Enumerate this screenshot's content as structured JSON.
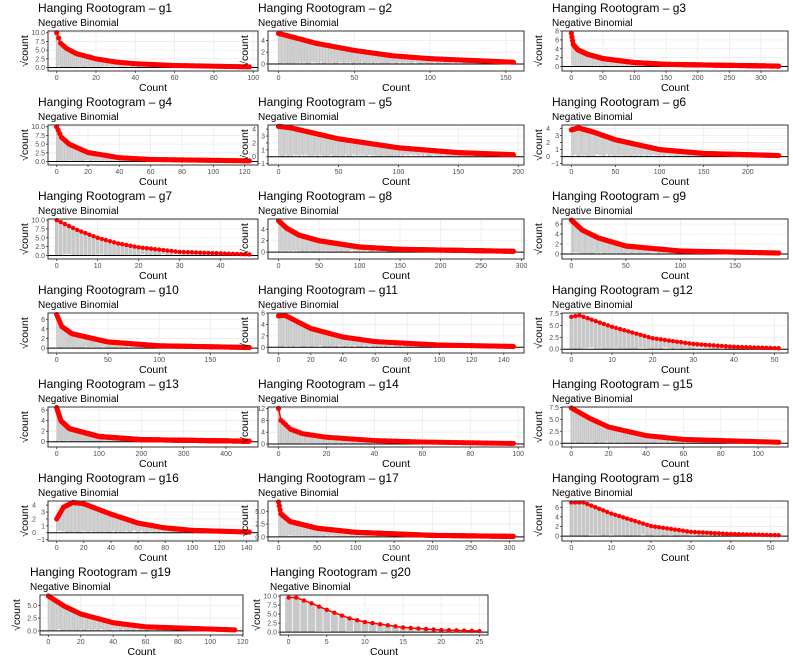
{
  "colors": {
    "fitted": "#ff0000",
    "observed_bar": "#c8c8c8",
    "grid": "#ebebeb",
    "zero_line": "#000000",
    "panel_border": "#333333"
  },
  "chart_data": [
    {
      "type": "bar",
      "title": "Hanging Rootogram – g1",
      "subtitle": "Negative Binomial",
      "xlabel": "Count",
      "ylabel": "√count",
      "xlim": [
        0,
        98
      ],
      "ylim": [
        -1,
        10.5
      ],
      "xticks": [
        0,
        20,
        40,
        60,
        80,
        100
      ],
      "yticks": [
        0,
        2.5,
        5,
        7.5,
        10
      ],
      "ytick_labels": [
        "0.0",
        "2.5",
        "5.0",
        "7.5",
        "10.0"
      ],
      "fitted_sqrt": [
        [
          0,
          10
        ],
        [
          2,
          7
        ],
        [
          5,
          5.5
        ],
        [
          10,
          4
        ],
        [
          20,
          2.5
        ],
        [
          30,
          1.6
        ],
        [
          40,
          1.1
        ],
        [
          60,
          0.6
        ],
        [
          98,
          0.2
        ]
      ]
    },
    {
      "type": "bar",
      "title": "Hanging Rootogram – g2",
      "subtitle": "Negative Binomial",
      "xlabel": "Count",
      "ylabel": "√count",
      "xlim": [
        0,
        155
      ],
      "ylim": [
        -1.2,
        5.6
      ],
      "xticks": [
        0,
        50,
        100,
        150
      ],
      "yticks": [
        0,
        2,
        4
      ],
      "ytick_labels": [
        "0",
        "2",
        "4"
      ],
      "fitted_sqrt": [
        [
          0,
          5.2
        ],
        [
          25,
          3.5
        ],
        [
          50,
          2.3
        ],
        [
          75,
          1.4
        ],
        [
          100,
          0.9
        ],
        [
          155,
          0.3
        ]
      ]
    },
    {
      "type": "bar",
      "title": "Hanging Rootogram – g3",
      "subtitle": "Negative Binomial",
      "xlabel": "Count",
      "ylabel": "√count",
      "xlim": [
        0,
        328
      ],
      "ylim": [
        -1,
        8
      ],
      "xticks": [
        0,
        50,
        100,
        150,
        200,
        250,
        300
      ],
      "yticks": [
        0,
        2,
        4,
        6,
        8
      ],
      "ytick_labels": [
        "0",
        "2",
        "4",
        "6",
        "8"
      ],
      "fitted_sqrt": [
        [
          0,
          7.5
        ],
        [
          3,
          5
        ],
        [
          10,
          3.8
        ],
        [
          25,
          2.8
        ],
        [
          50,
          1.8
        ],
        [
          100,
          0.9
        ],
        [
          150,
          0.5
        ],
        [
          328,
          0.1
        ]
      ]
    },
    {
      "type": "bar",
      "title": "Hanging Rootogram – g4",
      "subtitle": "Negative Binomial",
      "xlabel": "Count",
      "ylabel": "√count",
      "xlim": [
        0,
        123
      ],
      "ylim": [
        -1,
        10.5
      ],
      "xticks": [
        0,
        20,
        40,
        60,
        80,
        100,
        120
      ],
      "yticks": [
        0,
        2.5,
        5,
        7.5,
        10
      ],
      "ytick_labels": [
        "0.0",
        "2.5",
        "5.0",
        "7.5",
        "10.0"
      ],
      "fitted_sqrt": [
        [
          0,
          10
        ],
        [
          3,
          7
        ],
        [
          8,
          5
        ],
        [
          20,
          2.6
        ],
        [
          40,
          1.1
        ],
        [
          60,
          0.6
        ],
        [
          123,
          0.2
        ]
      ]
    },
    {
      "type": "bar",
      "title": "Hanging Rootogram – g5",
      "subtitle": "Negative Binomial",
      "xlabel": "Count",
      "ylabel": "√count",
      "xlim": [
        0,
        196
      ],
      "ylim": [
        -1.2,
        4.6
      ],
      "xticks": [
        0,
        50,
        100,
        150,
        200
      ],
      "yticks": [
        -1,
        0,
        1,
        2,
        3,
        4
      ],
      "ytick_labels": [
        "−1",
        "0",
        "1",
        "2",
        "3",
        "4"
      ],
      "fitted_sqrt": [
        [
          0,
          4.4
        ],
        [
          10,
          4.2
        ],
        [
          50,
          2.6
        ],
        [
          100,
          1.3
        ],
        [
          150,
          0.6
        ],
        [
          196,
          0.3
        ]
      ]
    },
    {
      "type": "bar",
      "title": "Hanging Rootogram – g6",
      "subtitle": "Negative Binomial",
      "xlabel": "Count",
      "ylabel": "√count",
      "xlim": [
        0,
        235
      ],
      "ylim": [
        -1.2,
        4.5
      ],
      "xticks": [
        0,
        50,
        100,
        150,
        200
      ],
      "yticks": [
        -1,
        0,
        1,
        2,
        3,
        4
      ],
      "ytick_labels": [
        "−1",
        "0",
        "1",
        "2",
        "3",
        "4"
      ],
      "fitted_sqrt": [
        [
          0,
          3.8
        ],
        [
          8,
          4.1
        ],
        [
          25,
          3.5
        ],
        [
          50,
          2.4
        ],
        [
          100,
          1
        ],
        [
          150,
          0.45
        ],
        [
          235,
          0.15
        ]
      ]
    },
    {
      "type": "bar",
      "title": "Hanging Rootogram – g7",
      "subtitle": "Negative Binomial",
      "xlabel": "Count",
      "ylabel": "√count",
      "xlim": [
        0,
        47
      ],
      "ylim": [
        -1,
        10.3
      ],
      "xticks": [
        0,
        10,
        20,
        30,
        40
      ],
      "yticks": [
        0,
        2.5,
        5,
        7.5,
        10
      ],
      "ytick_labels": [
        "0.0",
        "2.5",
        "5.0",
        "7.5",
        "10.0"
      ],
      "fitted_sqrt": [
        [
          0,
          10
        ],
        [
          5,
          7.2
        ],
        [
          10,
          5
        ],
        [
          15,
          3.4
        ],
        [
          20,
          2.3
        ],
        [
          30,
          1
        ],
        [
          47,
          0.3
        ]
      ]
    },
    {
      "type": "bar",
      "title": "Hanging Rootogram – g8",
      "subtitle": "Negative Binomial",
      "xlabel": "Count",
      "ylabel": "√count",
      "xlim": [
        0,
        290
      ],
      "ylim": [
        -1.2,
        5.8
      ],
      "xticks": [
        0,
        50,
        100,
        150,
        200,
        250,
        300
      ],
      "yticks": [
        0,
        2,
        4
      ],
      "ytick_labels": [
        "0",
        "2",
        "4"
      ],
      "fitted_sqrt": [
        [
          0,
          5.5
        ],
        [
          10,
          4.2
        ],
        [
          25,
          3
        ],
        [
          50,
          2
        ],
        [
          100,
          0.9
        ],
        [
          150,
          0.5
        ],
        [
          290,
          0.15
        ]
      ]
    },
    {
      "type": "bar",
      "title": "Hanging Rootogram – g9",
      "subtitle": "Negative Binomial",
      "xlabel": "Count",
      "ylabel": "√count",
      "xlim": [
        0,
        190
      ],
      "ylim": [
        -1,
        7
      ],
      "xticks": [
        0,
        50,
        100,
        150
      ],
      "yticks": [
        0,
        2,
        4,
        6
      ],
      "ytick_labels": [
        "0",
        "2",
        "4",
        "6"
      ],
      "fitted_sqrt": [
        [
          0,
          6.8
        ],
        [
          10,
          4.8
        ],
        [
          25,
          3.2
        ],
        [
          50,
          1.6
        ],
        [
          100,
          0.6
        ],
        [
          190,
          0.2
        ]
      ]
    },
    {
      "type": "bar",
      "title": "Hanging Rootogram – g10",
      "subtitle": "Negative Binomial",
      "xlabel": "Count",
      "ylabel": "√count",
      "xlim": [
        0,
        188
      ],
      "ylim": [
        -1,
        7.3
      ],
      "xticks": [
        0,
        50,
        100,
        150
      ],
      "yticks": [
        0,
        2,
        4,
        6
      ],
      "ytick_labels": [
        "0",
        "2",
        "4",
        "6"
      ],
      "fitted_sqrt": [
        [
          0,
          7
        ],
        [
          5,
          4.5
        ],
        [
          15,
          3
        ],
        [
          50,
          1.3
        ],
        [
          100,
          0.5
        ],
        [
          188,
          0.15
        ]
      ]
    },
    {
      "type": "bar",
      "title": "Hanging Rootogram – g11",
      "subtitle": "Negative Binomial",
      "xlabel": "Count",
      "ylabel": "√count",
      "xlim": [
        0,
        146
      ],
      "ylim": [
        -1,
        6
      ],
      "xticks": [
        0,
        20,
        40,
        60,
        80,
        100,
        120,
        140
      ],
      "yticks": [
        0,
        2,
        4,
        6
      ],
      "ytick_labels": [
        "0",
        "2",
        "4",
        "6"
      ],
      "fitted_sqrt": [
        [
          0,
          5.5
        ],
        [
          4,
          5.6
        ],
        [
          20,
          3.3
        ],
        [
          40,
          1.8
        ],
        [
          60,
          1
        ],
        [
          100,
          0.4
        ],
        [
          146,
          0.15
        ]
      ]
    },
    {
      "type": "bar",
      "title": "Hanging Rootogram – g12",
      "subtitle": "Negative Binomial",
      "xlabel": "Count",
      "ylabel": "√count",
      "xlim": [
        0,
        51
      ],
      "ylim": [
        -0.8,
        7.6
      ],
      "xticks": [
        0,
        10,
        20,
        30,
        40,
        50
      ],
      "yticks": [
        0,
        2.5,
        5,
        7.5
      ],
      "ytick_labels": [
        "0.0",
        "2.5",
        "5.0",
        "7.5"
      ],
      "fitted_sqrt": [
        [
          0,
          6.8
        ],
        [
          2,
          7.1
        ],
        [
          5,
          6.2
        ],
        [
          10,
          4.7
        ],
        [
          20,
          2.3
        ],
        [
          30,
          1.1
        ],
        [
          40,
          0.5
        ],
        [
          51,
          0.2
        ]
      ]
    },
    {
      "type": "bar",
      "title": "Hanging Rootogram – g13",
      "subtitle": "Negative Binomial",
      "xlabel": "Count",
      "ylabel": "√count",
      "xlim": [
        0,
        455
      ],
      "ylim": [
        -1,
        6.6
      ],
      "xticks": [
        0,
        100,
        200,
        300,
        400
      ],
      "yticks": [
        0,
        2,
        4,
        6
      ],
      "ytick_labels": [
        "0",
        "2",
        "4",
        "6"
      ],
      "fitted_sqrt": [
        [
          0,
          6.5
        ],
        [
          10,
          4
        ],
        [
          30,
          2.5
        ],
        [
          100,
          1
        ],
        [
          200,
          0.4
        ],
        [
          455,
          0.1
        ]
      ]
    },
    {
      "type": "bar",
      "title": "Hanging Rootogram – g14",
      "subtitle": "Negative Binomial",
      "xlabel": "Count",
      "ylabel": "√count",
      "xlim": [
        0,
        98
      ],
      "ylim": [
        -1,
        12.5
      ],
      "xticks": [
        0,
        20,
        40,
        60,
        80,
        100
      ],
      "yticks": [
        0,
        4,
        8,
        12
      ],
      "ytick_labels": [
        "0",
        "4",
        "8",
        "12"
      ],
      "fitted_sqrt": [
        [
          0,
          12
        ],
        [
          1,
          8
        ],
        [
          5,
          5
        ],
        [
          10,
          3.5
        ],
        [
          20,
          2.3
        ],
        [
          40,
          1.2
        ],
        [
          60,
          0.7
        ],
        [
          98,
          0.2
        ]
      ]
    },
    {
      "type": "bar",
      "title": "Hanging Rootogram – g15",
      "subtitle": "Negative Binomial",
      "xlabel": "Count",
      "ylabel": "√count",
      "xlim": [
        0,
        111
      ],
      "ylim": [
        -0.8,
        7.6
      ],
      "xticks": [
        0,
        20,
        40,
        60,
        80,
        100
      ],
      "yticks": [
        0,
        2.5,
        5,
        7.5
      ],
      "ytick_labels": [
        "0.0",
        "2.5",
        "5.0",
        "7.5"
      ],
      "fitted_sqrt": [
        [
          0,
          7.4
        ],
        [
          10,
          5.2
        ],
        [
          20,
          3.4
        ],
        [
          40,
          1.6
        ],
        [
          60,
          0.8
        ],
        [
          111,
          0.2
        ]
      ]
    },
    {
      "type": "bar",
      "title": "Hanging Rootogram – g16",
      "subtitle": "Negative Binomial",
      "xlabel": "Count",
      "ylabel": "√count",
      "xlim": [
        0,
        142
      ],
      "ylim": [
        -1.2,
        4.6
      ],
      "xticks": [
        0,
        20,
        40,
        60,
        80,
        100,
        120,
        140
      ],
      "yticks": [
        -1,
        0,
        1,
        2,
        3,
        4
      ],
      "ytick_labels": [
        "−1",
        "0",
        "1",
        "2",
        "3",
        "4"
      ],
      "fitted_sqrt": [
        [
          0,
          2
        ],
        [
          5,
          3.7
        ],
        [
          12,
          4.4
        ],
        [
          20,
          4.2
        ],
        [
          40,
          2.7
        ],
        [
          60,
          1.4
        ],
        [
          80,
          0.7
        ],
        [
          100,
          0.35
        ],
        [
          142,
          0.1
        ]
      ]
    },
    {
      "type": "bar",
      "title": "Hanging Rootogram – g17",
      "subtitle": "Negative Binomial",
      "xlabel": "Count",
      "ylabel": "√count",
      "xlim": [
        0,
        305
      ],
      "ylim": [
        -0.8,
        7
      ],
      "xticks": [
        0,
        50,
        100,
        150,
        200,
        250,
        300
      ],
      "yticks": [
        0,
        2.5,
        5
      ],
      "ytick_labels": [
        "0.0",
        "2.5",
        "5.0"
      ],
      "fitted_sqrt": [
        [
          0,
          6.8
        ],
        [
          3,
          4.5
        ],
        [
          15,
          3
        ],
        [
          50,
          1.7
        ],
        [
          100,
          0.9
        ],
        [
          200,
          0.3
        ],
        [
          305,
          0.1
        ]
      ]
    },
    {
      "type": "bar",
      "title": "Hanging Rootogram – g18",
      "subtitle": "Negative Binomial",
      "xlabel": "Count",
      "ylabel": "√count",
      "xlim": [
        0,
        52
      ],
      "ylim": [
        -1,
        7.3
      ],
      "xticks": [
        0,
        10,
        20,
        30,
        40,
        50
      ],
      "yticks": [
        0,
        2,
        4,
        6
      ],
      "ytick_labels": [
        "0",
        "2",
        "4",
        "6"
      ],
      "fitted_sqrt": [
        [
          0,
          7
        ],
        [
          3,
          7
        ],
        [
          10,
          4.7
        ],
        [
          20,
          2.1
        ],
        [
          30,
          0.9
        ],
        [
          40,
          0.45
        ],
        [
          52,
          0.2
        ]
      ]
    },
    {
      "type": "bar",
      "title": "Hanging Rootogram – g19",
      "subtitle": "Negative Binomial",
      "xlabel": "Count",
      "ylabel": "√count",
      "xlim": [
        0,
        115
      ],
      "ylim": [
        -0.8,
        7
      ],
      "xticks": [
        0,
        20,
        40,
        60,
        80,
        100,
        120
      ],
      "yticks": [
        0,
        2.5,
        5
      ],
      "ytick_labels": [
        "0.0",
        "2.5",
        "5.0"
      ],
      "fitted_sqrt": [
        [
          0,
          6.8
        ],
        [
          10,
          4.8
        ],
        [
          20,
          3.3
        ],
        [
          40,
          1.6
        ],
        [
          60,
          0.8
        ],
        [
          115,
          0.2
        ]
      ]
    },
    {
      "type": "bar",
      "title": "Hanging Rootogram – g20",
      "subtitle": "Negative Binomial",
      "xlabel": "Count",
      "ylabel": "√count",
      "xlim": [
        0,
        25
      ],
      "ylim": [
        -0.8,
        10.3
      ],
      "xticks": [
        0,
        5,
        10,
        15,
        20,
        25
      ],
      "yticks": [
        0,
        2.5,
        5,
        7.5,
        10
      ],
      "ytick_labels": [
        "0.0",
        "2.5",
        "5.0",
        "7.5",
        "10.0"
      ],
      "fitted_sqrt": [
        [
          0,
          9.6
        ],
        [
          1,
          9.6
        ],
        [
          3,
          8
        ],
        [
          5,
          6.2
        ],
        [
          8,
          3.8
        ],
        [
          10,
          2.8
        ],
        [
          15,
          1.3
        ],
        [
          20,
          0.6
        ],
        [
          25,
          0.3
        ]
      ]
    }
  ]
}
